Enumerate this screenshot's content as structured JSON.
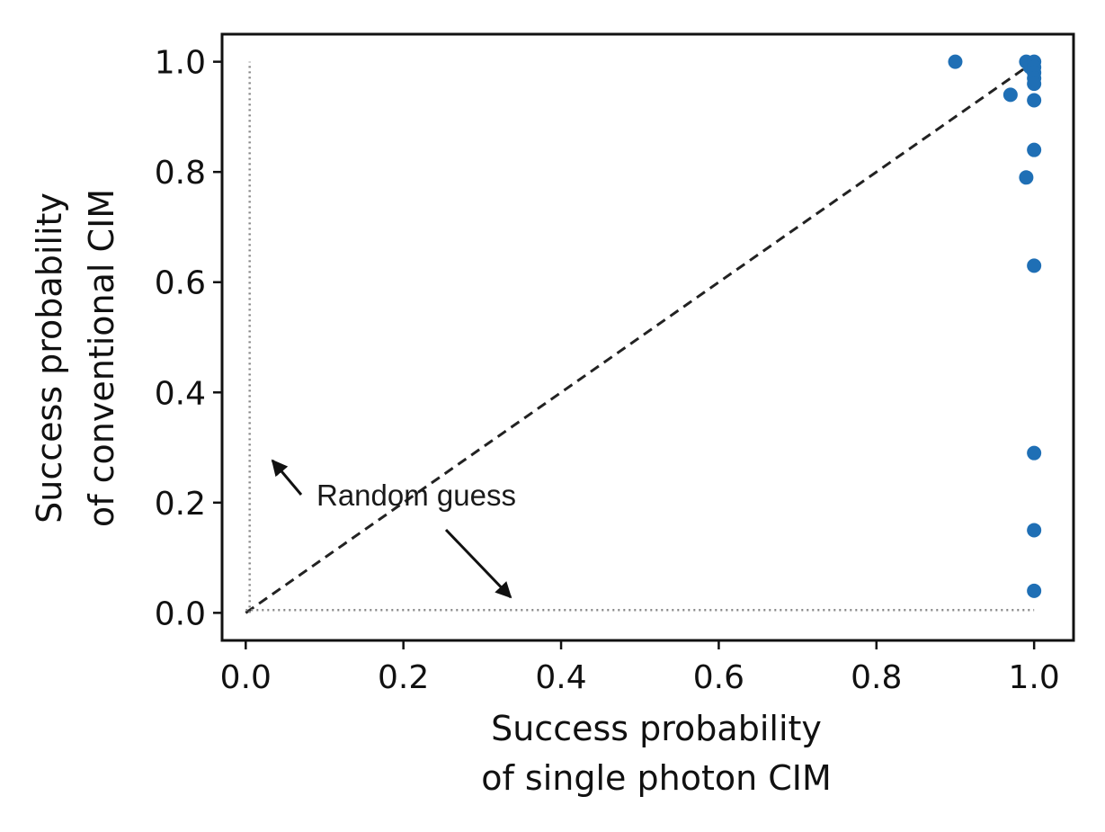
{
  "chart_data": {
    "type": "scatter",
    "title": "",
    "xlabel": [
      "Success probability",
      "of single photon CIM"
    ],
    "ylabel": [
      "Success probability",
      "of conventional CIM"
    ],
    "xlim": [
      -0.03,
      1.05
    ],
    "ylim": [
      -0.05,
      1.05
    ],
    "xticks": [
      0.0,
      0.2,
      0.4,
      0.6,
      0.8,
      1.0
    ],
    "xtick_labels": [
      "0.0",
      "0.2",
      "0.4",
      "0.6",
      "0.8",
      "1.0"
    ],
    "yticks": [
      0.0,
      0.2,
      0.4,
      0.6,
      0.8,
      1.0
    ],
    "ytick_labels": [
      "0.0",
      "0.2",
      "0.4",
      "0.6",
      "0.8",
      "1.0"
    ],
    "grid": false,
    "marker_color": "#1f6fb5",
    "points": [
      {
        "x": 0.9,
        "y": 1.0
      },
      {
        "x": 0.97,
        "y": 0.94
      },
      {
        "x": 0.99,
        "y": 1.0
      },
      {
        "x": 0.995,
        "y": 0.99
      },
      {
        "x": 1.0,
        "y": 1.0
      },
      {
        "x": 1.0,
        "y": 0.99
      },
      {
        "x": 1.0,
        "y": 0.98
      },
      {
        "x": 1.0,
        "y": 0.97
      },
      {
        "x": 1.0,
        "y": 0.96
      },
      {
        "x": 1.0,
        "y": 0.93
      },
      {
        "x": 1.0,
        "y": 0.84
      },
      {
        "x": 0.99,
        "y": 0.79
      },
      {
        "x": 1.0,
        "y": 0.63
      },
      {
        "x": 1.0,
        "y": 0.29
      },
      {
        "x": 1.0,
        "y": 0.15
      },
      {
        "x": 1.0,
        "y": 0.04
      }
    ],
    "reference_lines": [
      {
        "kind": "diagonal",
        "x": [
          0.0,
          1.0
        ],
        "y": [
          0.0,
          1.0
        ],
        "style": "dashed",
        "color": "#222222"
      },
      {
        "kind": "random-guess-vertical",
        "x": [
          0.005,
          0.005
        ],
        "y": [
          0.0,
          1.0
        ],
        "style": "dotted",
        "color": "#888888"
      },
      {
        "kind": "random-guess-horizontal",
        "x": [
          0.0,
          1.0
        ],
        "y": [
          0.005,
          0.005
        ],
        "style": "dotted",
        "color": "#888888"
      }
    ],
    "annotations": [
      {
        "text": "Random guess"
      }
    ]
  }
}
